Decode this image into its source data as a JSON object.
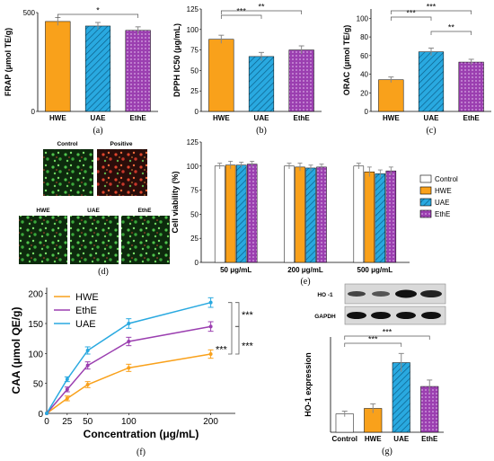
{
  "colors": {
    "hwe": "#f9a11b",
    "uae": "#29a9e0",
    "ethe": "#9b3fb0",
    "control": "#ffffff",
    "axis": "#000000",
    "error": "#888888"
  },
  "chart_data": [
    {
      "id": "a",
      "type": "bar",
      "panel_label": "(a)",
      "categories": [
        "HWE",
        "UAE",
        "EthE"
      ],
      "values": [
        455,
        432,
        410
      ],
      "errors": [
        20,
        18,
        18
      ],
      "ylabel": "FRAP (μmol TE/g)",
      "ylim": [
        0,
        500
      ],
      "yticks": [
        "0",
        "500"
      ],
      "significance": [
        {
          "from": 0,
          "to": 2,
          "label": "*"
        }
      ]
    },
    {
      "id": "b",
      "type": "bar",
      "panel_label": "(b)",
      "categories": [
        "HWE",
        "UAE",
        "EthE"
      ],
      "values": [
        88,
        67,
        75
      ],
      "errors": [
        5,
        5,
        5
      ],
      "ylabel": "DPPH IC50 (μg/mL)",
      "ylim": [
        0,
        125
      ],
      "yticks": [
        "0",
        "25",
        "50",
        "75",
        "100",
        "125"
      ],
      "significance": [
        {
          "from": 0,
          "to": 1,
          "label": "***"
        },
        {
          "from": 0,
          "to": 2,
          "label": "**"
        }
      ]
    },
    {
      "id": "c",
      "type": "bar",
      "panel_label": "(c)",
      "categories": [
        "HWE",
        "UAE",
        "EthE"
      ],
      "values": [
        34,
        64,
        53
      ],
      "errors": [
        3,
        4,
        3
      ],
      "ylabel": "ORAC (μmol TE/g)",
      "ylim": [
        0,
        110
      ],
      "yticks": [
        "0",
        "20",
        "40",
        "60",
        "80",
        "100"
      ],
      "significance": [
        {
          "from": 0,
          "to": 1,
          "label": "***"
        },
        {
          "from": 0,
          "to": 2,
          "label": "***"
        },
        {
          "from": 1,
          "to": 2,
          "label": "**"
        }
      ]
    },
    {
      "id": "e",
      "type": "bar",
      "panel_label": "(e)",
      "categories": [
        "50 μg/mL",
        "200 μg/mL",
        "500 μg/mL"
      ],
      "series": [
        {
          "name": "Control",
          "values": [
            100,
            100,
            100
          ],
          "errors": [
            3,
            3,
            3
          ]
        },
        {
          "name": "HWE",
          "values": [
            101,
            99,
            94
          ],
          "errors": [
            4,
            4,
            5
          ]
        },
        {
          "name": "UAE",
          "values": [
            101,
            98,
            92
          ],
          "errors": [
            3,
            3,
            4
          ]
        },
        {
          "name": "EthE",
          "values": [
            102,
            99,
            95
          ],
          "errors": [
            3,
            3,
            4
          ]
        }
      ],
      "ylabel": "Cell viability (%)",
      "ylim": [
        0,
        125
      ],
      "yticks": [
        "0",
        "25",
        "50",
        "75",
        "100",
        "125"
      ]
    },
    {
      "id": "f",
      "type": "line",
      "panel_label": "(f)",
      "x": [
        0,
        25,
        50,
        100,
        200
      ],
      "series": [
        {
          "name": "HWE",
          "values": [
            0,
            25,
            48,
            76,
            99
          ],
          "errors": [
            0,
            4,
            5,
            6,
            7
          ]
        },
        {
          "name": "EthE",
          "values": [
            0,
            40,
            80,
            120,
            145
          ],
          "errors": [
            0,
            4,
            6,
            7,
            8
          ]
        },
        {
          "name": "UAE",
          "values": [
            0,
            57,
            105,
            150,
            185
          ],
          "errors": [
            0,
            4,
            6,
            8,
            8
          ]
        }
      ],
      "xlabel": "Concentration (μg/mL)",
      "ylabel": "CAA (μmol QE/g)",
      "xticks": [
        "0",
        "25",
        "50",
        "100",
        "200"
      ],
      "yticks": [
        "0",
        "50",
        "100",
        "150",
        "200"
      ],
      "xlim": [
        0,
        230
      ],
      "ylim": [
        0,
        210
      ],
      "legend": "top-left",
      "significance": [
        "***",
        "***",
        "***"
      ]
    },
    {
      "id": "g",
      "type": "bar",
      "panel_label": "(g)",
      "categories": [
        "Control",
        "HWE",
        "UAE",
        "EthE"
      ],
      "values": [
        1.0,
        1.3,
        3.8,
        2.5
      ],
      "errors": [
        0.15,
        0.25,
        0.5,
        0.35
      ],
      "ylabel": "HO-1 expression",
      "ylim": [
        0,
        5.2
      ],
      "significance": [
        {
          "from": 0,
          "to": 2,
          "label": "***"
        },
        {
          "from": 0,
          "to": 3,
          "label": "***"
        }
      ],
      "blot_labels": [
        "HO -1",
        "GAPDH"
      ]
    }
  ],
  "micrographs": {
    "panel_label": "(d)",
    "labels": [
      "Control",
      "Positive",
      "HWE",
      "UAE",
      "EthE"
    ]
  },
  "legend_e": [
    "Control",
    "HWE",
    "UAE",
    "EthE"
  ]
}
